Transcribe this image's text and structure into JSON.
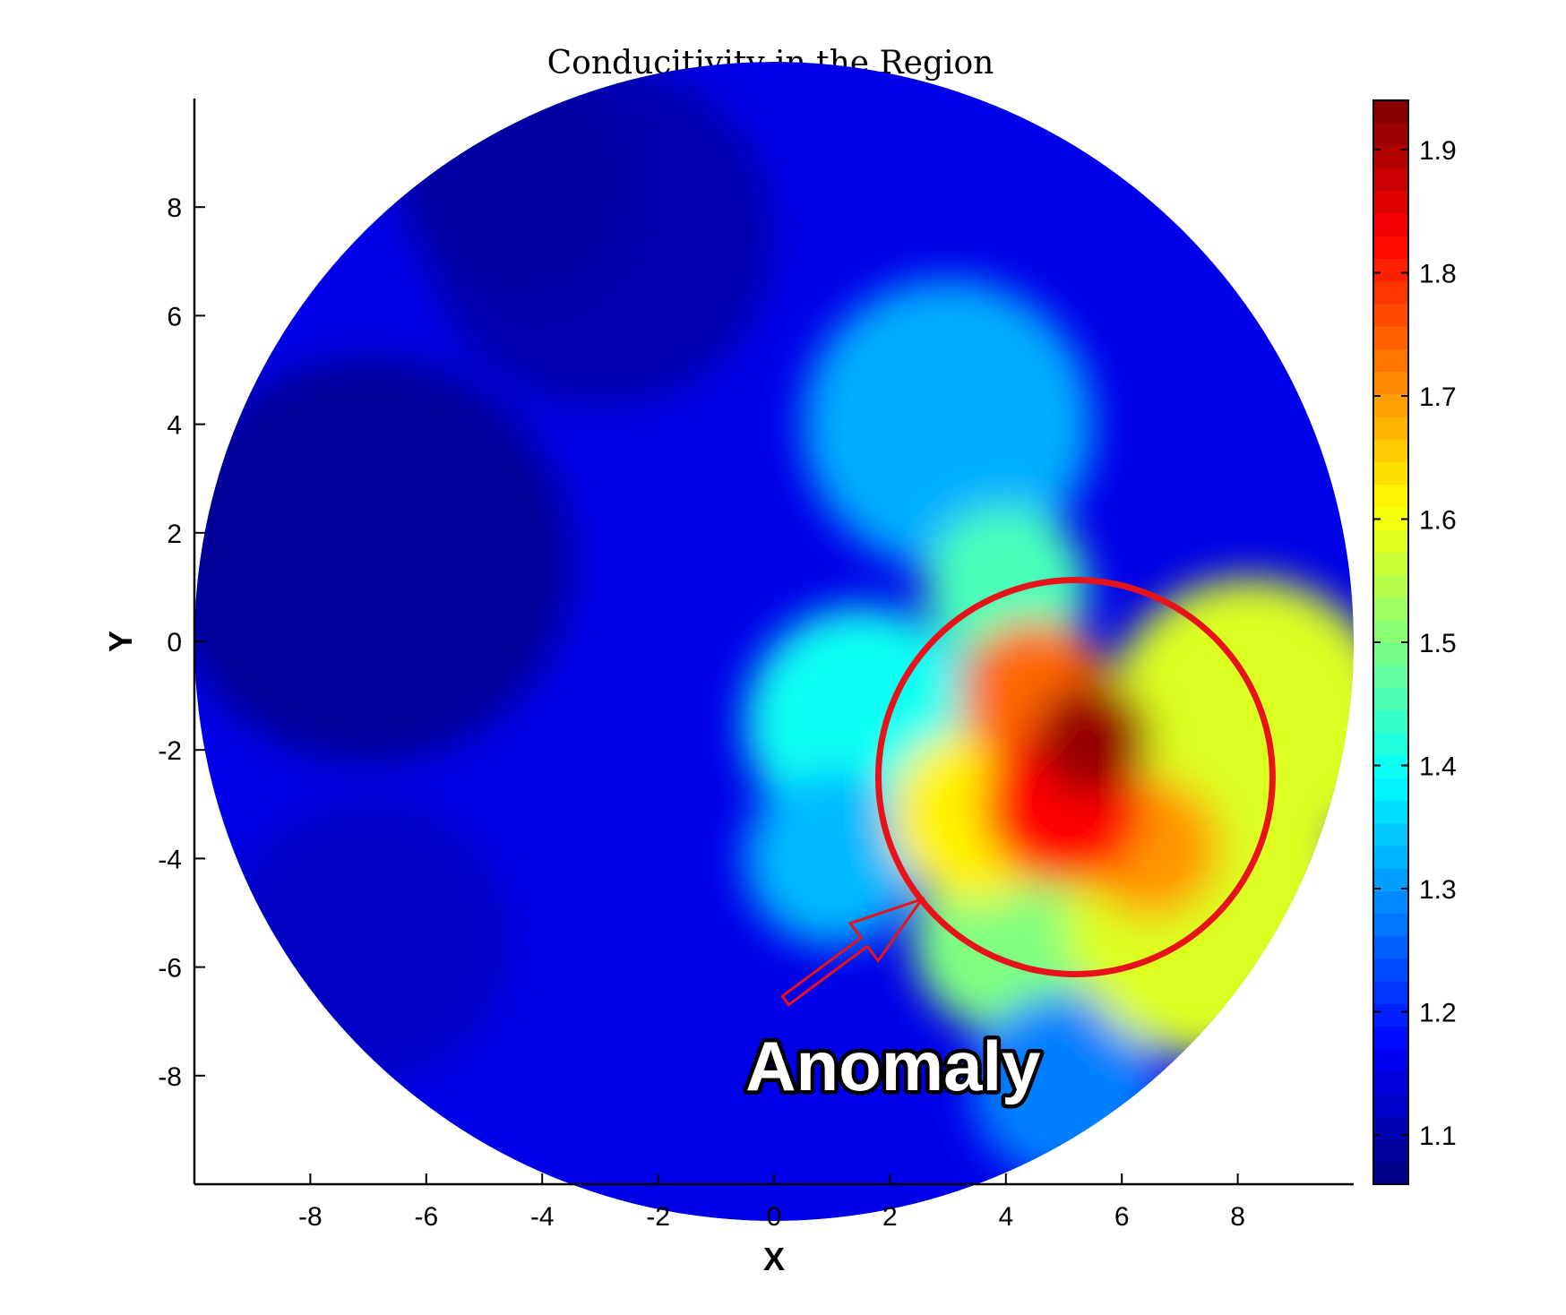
{
  "chart_data": {
    "type": "heatmap",
    "title": "Conducitivity in the Region",
    "xlabel": "X",
    "ylabel": "Y",
    "xlim": [
      -10,
      10
    ],
    "ylim": [
      -10,
      10
    ],
    "xticks": [
      -8,
      -6,
      -4,
      -2,
      0,
      2,
      4,
      6,
      8
    ],
    "yticks": [
      -8,
      -6,
      -4,
      -2,
      0,
      2,
      4,
      6,
      8
    ],
    "domain": {
      "shape": "disk",
      "center": [
        0,
        0
      ],
      "radius": 10
    },
    "colormap": "jet",
    "colorbar": {
      "range": [
        1.06,
        1.94
      ],
      "ticks": [
        1.1,
        1.2,
        1.3,
        1.4,
        1.5,
        1.6,
        1.7,
        1.8,
        1.9
      ],
      "levels": 48
    },
    "background_value": 1.15,
    "regions": [
      {
        "center": [
          -7,
          1.5
        ],
        "radius": 3.5,
        "value": 1.08
      },
      {
        "center": [
          -3,
          7.5
        ],
        "radius": 3,
        "value": 1.1
      },
      {
        "center": [
          -7,
          -5.5
        ],
        "radius": 2.5,
        "value": 1.12
      },
      {
        "center": [
          -4.5,
          8.5
        ],
        "radius": 2,
        "value": 1.09
      },
      {
        "center": [
          3,
          4
        ],
        "radius": 2.5,
        "value": 1.32
      },
      {
        "center": [
          1.5,
          -1.5
        ],
        "radius": 2,
        "value": 1.4
      },
      {
        "center": [
          1,
          -4
        ],
        "radius": 1.5,
        "value": 1.33
      },
      {
        "center": [
          4,
          1
        ],
        "radius": 1.4,
        "value": 1.45
      },
      {
        "center": [
          4,
          -5.5
        ],
        "radius": 1.6,
        "value": 1.5
      },
      {
        "center": [
          5,
          -8.2
        ],
        "radius": 1.6,
        "value": 1.28
      },
      {
        "center": [
          8.2,
          -1.5
        ],
        "radius": 2.5,
        "value": 1.58
      },
      {
        "center": [
          7.5,
          -5
        ],
        "radius": 2.5,
        "value": 1.58
      },
      {
        "center": [
          3.5,
          -3.2
        ],
        "radius": 1.5,
        "value": 1.62
      },
      {
        "center": [
          4.5,
          -1
        ],
        "radius": 1.3,
        "value": 1.74
      },
      {
        "center": [
          6.5,
          -3.8
        ],
        "radius": 1.2,
        "value": 1.7
      },
      {
        "center": [
          5,
          -3
        ],
        "radius": 1.4,
        "value": 1.83
      },
      {
        "center": [
          5.5,
          -1.8
        ],
        "radius": 1,
        "value": 1.92
      }
    ],
    "annotations": [
      {
        "text": "Anomaly",
        "type": "circle-and-arrow",
        "circle_center": [
          5.2,
          -2.5
        ],
        "circle_radius": 3.4,
        "color": "#e8121b"
      }
    ]
  }
}
